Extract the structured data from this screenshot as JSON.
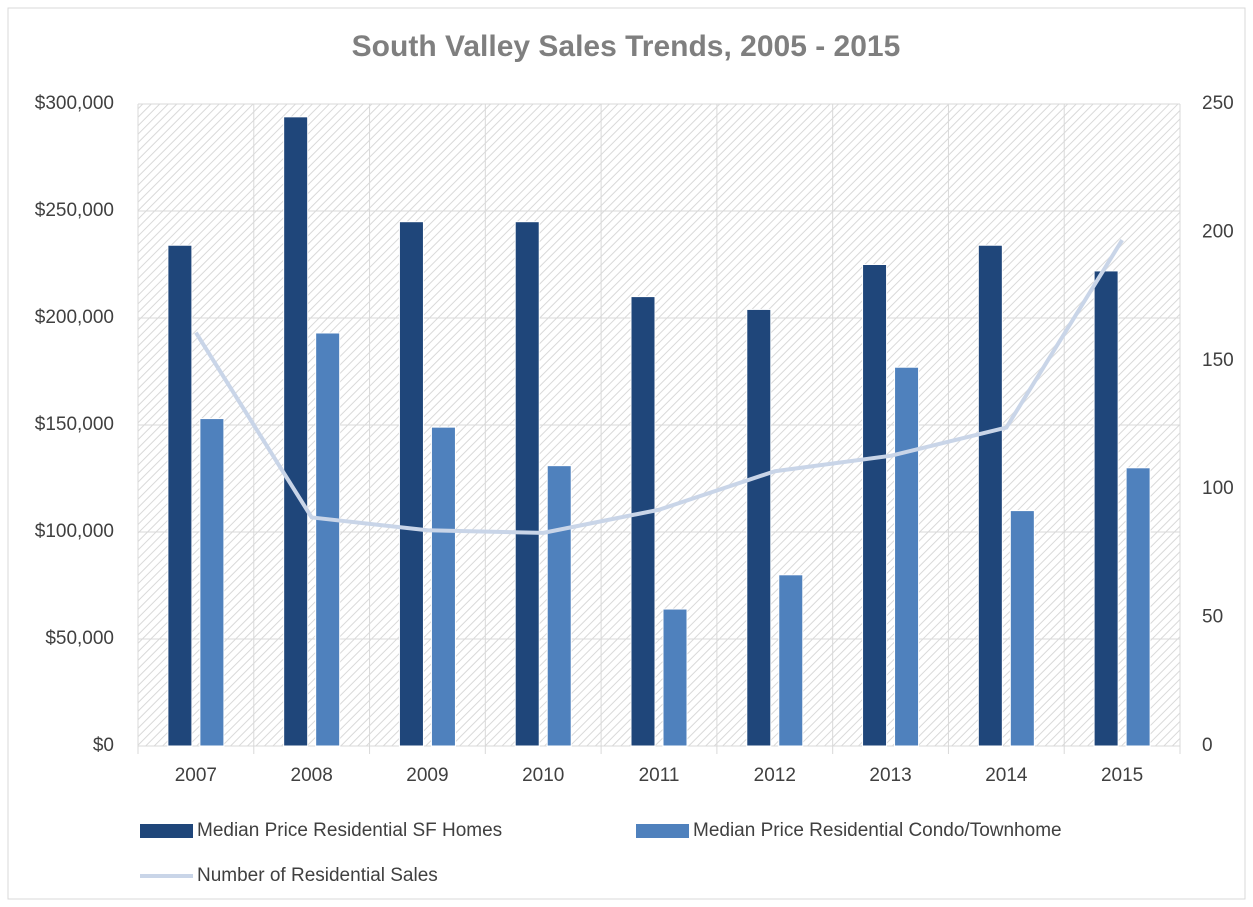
{
  "chart_data": {
    "type": "bar",
    "title": "South Valley Sales Trends, 2005 - 2015",
    "categories": [
      "2007",
      "2008",
      "2009",
      "2010",
      "2011",
      "2012",
      "2013",
      "2014",
      "2015"
    ],
    "series": [
      {
        "name": "Median Price Residential SF Homes",
        "color": "#1f467a",
        "type": "bar",
        "values": [
          234000,
          294000,
          245000,
          245000,
          210000,
          204000,
          225000,
          234000,
          222000
        ]
      },
      {
        "name": "Median Price Residential Condo/Townhome",
        "color": "#4f81bd",
        "type": "bar",
        "values": [
          153000,
          193000,
          149000,
          131000,
          64000,
          80000,
          177000,
          110000,
          130000
        ]
      },
      {
        "name": "Number of Residential Sales",
        "color": "#c9d5e8",
        "type": "line",
        "axis": "y2",
        "values": [
          161,
          89,
          84,
          83,
          92,
          107,
          113,
          124,
          197
        ]
      }
    ],
    "ylim": [
      0,
      300000
    ],
    "yticks": [
      {
        "value": 0,
        "label": "$0"
      },
      {
        "value": 50000,
        "label": "$50,000"
      },
      {
        "value": 100000,
        "label": "$100,000"
      },
      {
        "value": 150000,
        "label": "$150,000"
      },
      {
        "value": 200000,
        "label": "$200,000"
      },
      {
        "value": 250000,
        "label": "$250,000"
      },
      {
        "value": 300000,
        "label": "$300,000"
      }
    ],
    "y2lim": [
      0,
      250
    ],
    "y2ticks": [
      0,
      50,
      100,
      150,
      200,
      250
    ],
    "grid": true,
    "legend": "bottom"
  }
}
